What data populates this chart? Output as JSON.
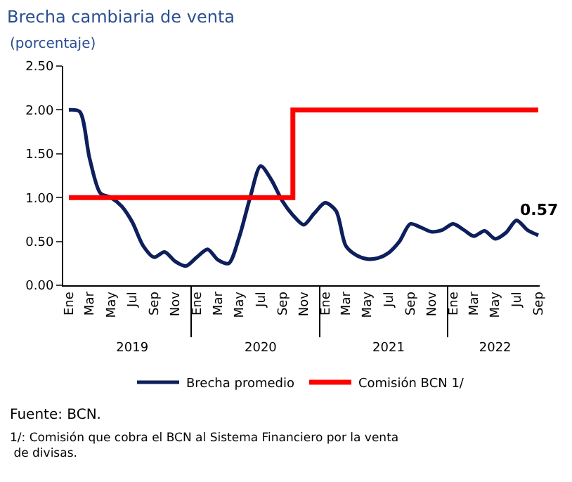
{
  "chart_data": {
    "type": "line",
    "title": "Brecha cambiaria de venta",
    "subtitle": "(porcentaje)",
    "x": [
      "2019-01",
      "2019-02",
      "2019-03",
      "2019-04",
      "2019-05",
      "2019-06",
      "2019-07",
      "2019-08",
      "2019-09",
      "2019-10",
      "2019-11",
      "2019-12",
      "2020-01",
      "2020-02",
      "2020-03",
      "2020-04",
      "2020-05",
      "2020-06",
      "2020-07",
      "2020-08",
      "2020-09",
      "2020-10",
      "2020-11",
      "2020-12",
      "2021-01",
      "2021-02",
      "2021-03",
      "2021-04",
      "2021-05",
      "2021-06",
      "2021-07",
      "2021-08",
      "2021-09",
      "2021-10",
      "2021-11",
      "2021-12",
      "2022-01",
      "2022-02",
      "2022-03",
      "2022-04",
      "2022-05",
      "2022-06",
      "2022-07",
      "2022-08",
      "2022-09"
    ],
    "series": [
      {
        "name": "Brecha promedio",
        "color": "#0d1f5c",
        "values": [
          2.0,
          1.98,
          1.45,
          1.05,
          1.0,
          0.9,
          0.72,
          0.45,
          0.32,
          0.38,
          0.27,
          0.22,
          0.32,
          0.41,
          0.29,
          0.25,
          0.55,
          1.0,
          1.36,
          1.2,
          0.96,
          0.8,
          0.69,
          0.82,
          0.94,
          0.85,
          0.45,
          0.34,
          0.3,
          0.31,
          0.37,
          0.5,
          0.7,
          0.66,
          0.61,
          0.63,
          0.7,
          0.63,
          0.56,
          0.62,
          0.53,
          0.6,
          0.74,
          0.63,
          0.57
        ],
        "value_labels": [
          null,
          null,
          null,
          null,
          null,
          null,
          null,
          null,
          null,
          null,
          null,
          null,
          null,
          null,
          null,
          null,
          null,
          null,
          null,
          null,
          null,
          null,
          null,
          null,
          null,
          null,
          null,
          null,
          null,
          null,
          null,
          null,
          null,
          null,
          null,
          null,
          null,
          null,
          null,
          null,
          null,
          null,
          null,
          null,
          "0.57"
        ]
      },
      {
        "name": "Comisión BCN 1/",
        "color": "#ff0000",
        "type": "step",
        "values": [
          1.0,
          1.0,
          1.0,
          1.0,
          1.0,
          1.0,
          1.0,
          1.0,
          1.0,
          1.0,
          1.0,
          1.0,
          1.0,
          1.0,
          1.0,
          1.0,
          1.0,
          1.0,
          1.0,
          1.0,
          1.0,
          2.0,
          2.0,
          2.0,
          2.0,
          2.0,
          2.0,
          2.0,
          2.0,
          2.0,
          2.0,
          2.0,
          2.0,
          2.0,
          2.0,
          2.0,
          2.0,
          2.0,
          2.0,
          2.0,
          2.0,
          2.0,
          2.0,
          2.0,
          2.0
        ]
      }
    ],
    "xlim": [
      "2018-12-16",
      "2022-09-05"
    ],
    "xticks": [
      {
        "value": "2019-01",
        "label": "Ene"
      },
      {
        "value": "2019-03",
        "label": "Mar"
      },
      {
        "value": "2019-05",
        "label": "May"
      },
      {
        "value": "2019-07",
        "label": "Jul"
      },
      {
        "value": "2019-09",
        "label": "Sep"
      },
      {
        "value": "2019-11",
        "label": "Nov"
      },
      {
        "value": "2020-01",
        "label": "Ene"
      },
      {
        "value": "2020-03",
        "label": "Mar"
      },
      {
        "value": "2020-05",
        "label": "May"
      },
      {
        "value": "2020-07",
        "label": "Jul"
      },
      {
        "value": "2020-09",
        "label": "Sep"
      },
      {
        "value": "2020-11",
        "label": "Nov"
      },
      {
        "value": "2021-01",
        "label": "Ene"
      },
      {
        "value": "2021-03",
        "label": "Mar"
      },
      {
        "value": "2021-05",
        "label": "May"
      },
      {
        "value": "2021-07",
        "label": "Jul"
      },
      {
        "value": "2021-09",
        "label": "Sep"
      },
      {
        "value": "2021-11",
        "label": "Nov"
      },
      {
        "value": "2022-01",
        "label": "Ene"
      },
      {
        "value": "2022-03",
        "label": "Mar"
      },
      {
        "value": "2022-05",
        "label": "May"
      },
      {
        "value": "2022-07",
        "label": "Jul"
      },
      {
        "value": "2022-09",
        "label": "Sep"
      }
    ],
    "x2lim": [
      "2018-12-16",
      "2022-09-05"
    ],
    "x2ticks": [
      {
        "value": "2019-07-01",
        "label": "2019"
      },
      {
        "value": "2020-07-01",
        "label": "2020"
      },
      {
        "value": "2021-07-01",
        "label": "2021"
      },
      {
        "value": "2022-05-01",
        "label": "2022"
      }
    ],
    "ylim": [
      0,
      2.5
    ],
    "yticks": [
      {
        "value": 0,
        "label": "0.00"
      },
      {
        "value": 0.5,
        "label": "0.50"
      },
      {
        "value": 1,
        "label": "1.00"
      },
      {
        "value": 1.5,
        "label": "1.50"
      },
      {
        "value": 2,
        "label": "2.00"
      },
      {
        "value": 2.5,
        "label": "2.50"
      }
    ],
    "grid": false,
    "legend": "bottom",
    "marker": "none",
    "line_style": "solid",
    "annotations": [
      "Fuente: BCN.",
      "1/: Comisión que cobra el BCN al Sistema Financiero por la venta\n de divisas."
    ]
  }
}
